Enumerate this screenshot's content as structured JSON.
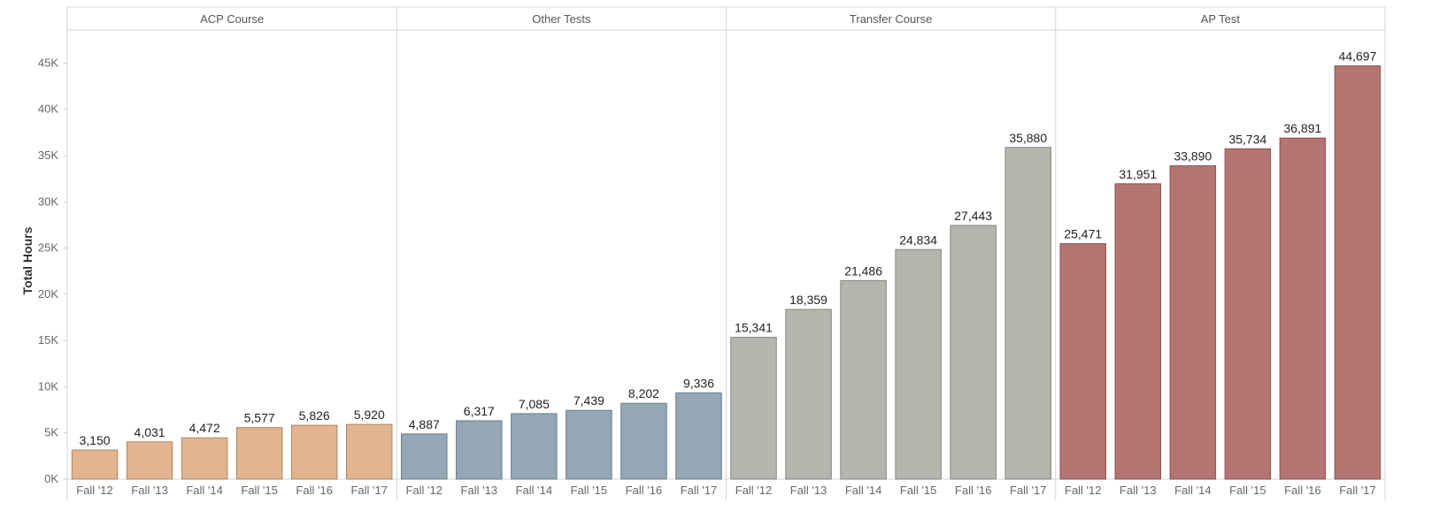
{
  "chart_data": {
    "type": "bar",
    "ylabel": "Total Hours",
    "ylim": [
      0,
      48000
    ],
    "yticks": [
      {
        "value": 0,
        "label": "0K"
      },
      {
        "value": 5000,
        "label": "5K"
      },
      {
        "value": 10000,
        "label": "10K"
      },
      {
        "value": 15000,
        "label": "15K"
      },
      {
        "value": 20000,
        "label": "20K"
      },
      {
        "value": 25000,
        "label": "25K"
      },
      {
        "value": 30000,
        "label": "30K"
      },
      {
        "value": 35000,
        "label": "35K"
      },
      {
        "value": 40000,
        "label": "40K"
      },
      {
        "value": 45000,
        "label": "45K"
      }
    ],
    "categories": [
      "Fall '12",
      "Fall '13",
      "Fall '14",
      "Fall '15",
      "Fall '16",
      "Fall '17"
    ],
    "grid": false,
    "panels": [
      {
        "name": "ACP Course",
        "color": "#E2B48F",
        "stroke": "#A88563",
        "values": [
          3150,
          4031,
          4472,
          5577,
          5826,
          5920
        ],
        "labels": [
          "3,150",
          "4,031",
          "4,472",
          "5,577",
          "5,826",
          "5,920"
        ]
      },
      {
        "name": "Other Tests",
        "color": "#93A7B5",
        "stroke": "#687C8A",
        "values": [
          4887,
          6317,
          7085,
          7439,
          8202,
          9336
        ],
        "labels": [
          "4,887",
          "6,317",
          "7,085",
          "7,439",
          "8,202",
          "9,336"
        ]
      },
      {
        "name": "Transfer Course",
        "color": "#B5B4AD",
        "stroke": "#86857E",
        "values": [
          15341,
          18359,
          21486,
          24834,
          27443,
          35880
        ],
        "labels": [
          "15,341",
          "18,359",
          "21,486",
          "24,834",
          "27,443",
          "35,880"
        ]
      },
      {
        "name": "AP Test",
        "color": "#B47472",
        "stroke": "#8A5250",
        "values": [
          25471,
          31951,
          33890,
          35734,
          36891,
          44697
        ],
        "labels": [
          "25,471",
          "31,951",
          "33,890",
          "35,734",
          "36,891",
          "44,697"
        ]
      }
    ]
  }
}
